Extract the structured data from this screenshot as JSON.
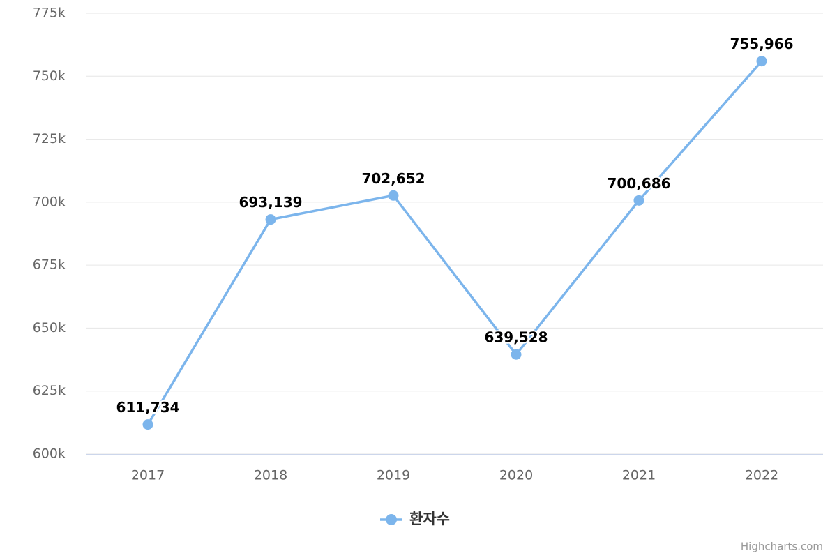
{
  "chart_data": {
    "type": "line",
    "categories": [
      "2017",
      "2018",
      "2019",
      "2020",
      "2021",
      "2022"
    ],
    "series": [
      {
        "name": "환자수",
        "color": "#7cb5ec",
        "values": [
          611734,
          693139,
          702652,
          639528,
          700686,
          755966
        ],
        "value_labels": [
          "611,734",
          "693,139",
          "702,652",
          "639,528",
          "700,686",
          "755,966"
        ]
      }
    ],
    "ylim": [
      600000,
      775000
    ],
    "yticks": [
      {
        "value": 600000,
        "label": "600k"
      },
      {
        "value": 625000,
        "label": "625k"
      },
      {
        "value": 650000,
        "label": "650k"
      },
      {
        "value": 675000,
        "label": "675k"
      },
      {
        "value": 700000,
        "label": "700k"
      },
      {
        "value": 725000,
        "label": "725k"
      },
      {
        "value": 750000,
        "label": "750k"
      },
      {
        "value": 775000,
        "label": "775k"
      }
    ],
    "grid": true,
    "legend": "bottom",
    "credits": "Highcharts.com"
  }
}
